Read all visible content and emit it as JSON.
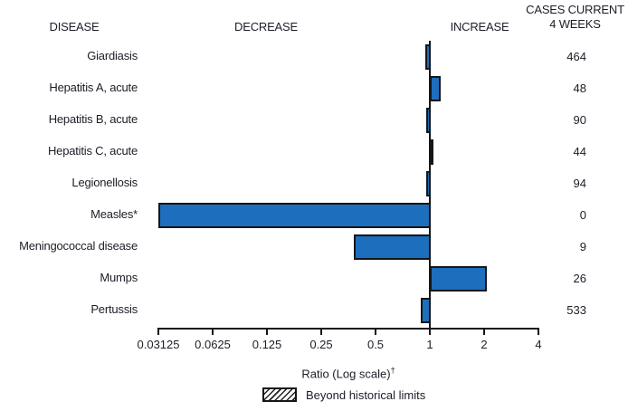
{
  "header": {
    "disease": "DISEASE",
    "decrease": "DECREASE",
    "increase": "INCREASE",
    "cases_line1": "CASES CURRENT",
    "cases_line2": "4 WEEKS"
  },
  "chart_data": {
    "type": "bar",
    "orientation": "horizontal",
    "scale": "log2",
    "baseline": 1,
    "xlim": [
      0.03125,
      4
    ],
    "x_ticks": [
      0.03125,
      0.0625,
      0.125,
      0.25,
      0.5,
      1,
      2,
      4
    ],
    "x_tick_labels": [
      "0.03125",
      "0.0625",
      "0.125",
      "0.25",
      "0.5",
      "1",
      "2",
      "4"
    ],
    "xlabel": "Ratio (Log scale)†",
    "xlabel_main": "Ratio (Log scale)",
    "xlabel_sup": "†",
    "legend": [
      {
        "label": "Beyond historical limits",
        "style": "hatched"
      }
    ],
    "rows": [
      {
        "disease": "Giardiasis",
        "ratio": 0.94,
        "cases": "464"
      },
      {
        "disease": "Hepatitis A, acute",
        "ratio": 1.15,
        "cases": "48"
      },
      {
        "disease": "Hepatitis B, acute",
        "ratio": 0.96,
        "cases": "90"
      },
      {
        "disease": "Hepatitis C, acute",
        "ratio": 1.05,
        "cases": "44"
      },
      {
        "disease": "Legionellosis",
        "ratio": 0.96,
        "cases": "94"
      },
      {
        "disease": "Measles*",
        "ratio": 0.03125,
        "cases": "0"
      },
      {
        "disease": "Meningococcal disease",
        "ratio": 0.38,
        "cases": "9"
      },
      {
        "disease": "Mumps",
        "ratio": 2.07,
        "cases": "26"
      },
      {
        "disease": "Pertussis",
        "ratio": 0.89,
        "cases": "533"
      }
    ]
  },
  "colors": {
    "bar_fill": "#1d6ebc",
    "bar_border": "#14161a",
    "axis": "#14161a",
    "text": "#1d1d28"
  }
}
